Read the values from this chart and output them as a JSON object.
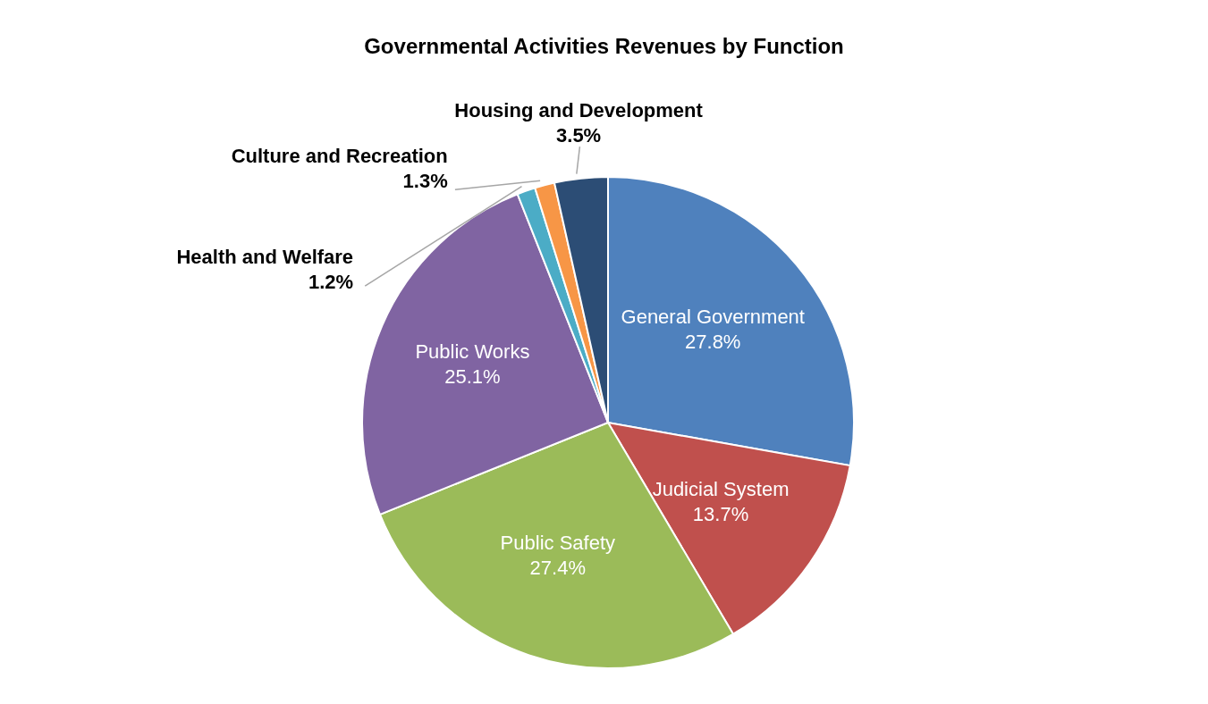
{
  "chart_data": {
    "type": "pie",
    "title": "Governmental Activities Revenues by Function",
    "categories": [
      "General Government",
      "Judicial System",
      "Public Safety",
      "Public Works",
      "Health and Welfare",
      "Culture and Recreation",
      "Housing and Development"
    ],
    "values": [
      27.8,
      13.7,
      27.4,
      25.1,
      1.2,
      1.3,
      3.5
    ],
    "value_labels": [
      "27.8%",
      "13.7%",
      "27.4%",
      "25.1%",
      "1.2%",
      "1.3%",
      "3.5%"
    ],
    "colors": [
      "#4f81bd",
      "#c0504d",
      "#9bbb59",
      "#8064a2",
      "#4bacc6",
      "#f79646",
      "#2c4d75"
    ]
  }
}
